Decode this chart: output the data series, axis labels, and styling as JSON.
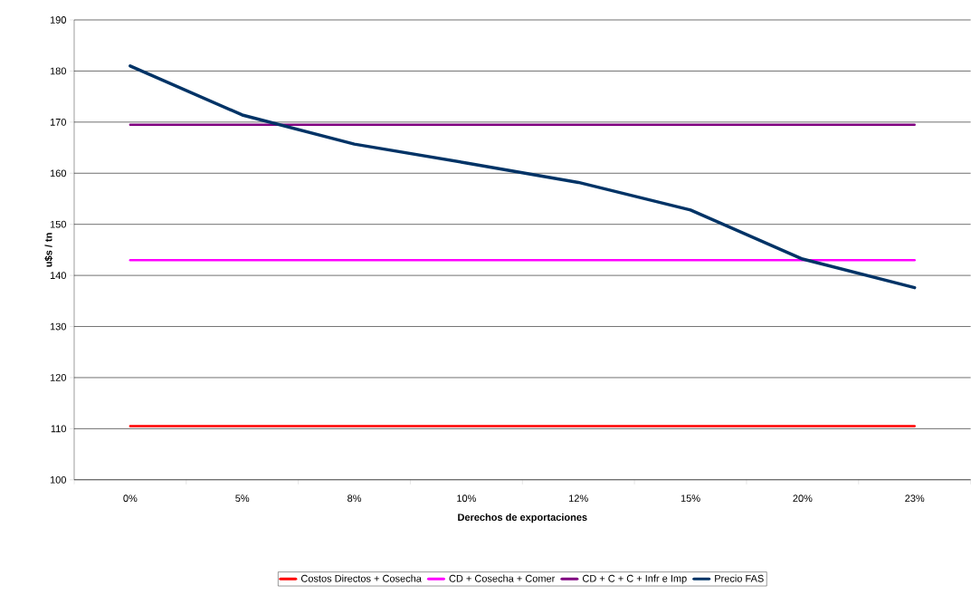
{
  "chart_data": {
    "type": "line",
    "xlabel": "Derechos de exportaciones",
    "ylabel": "u$s / tn",
    "categories": [
      "0%",
      "5%",
      "8%",
      "10%",
      "12%",
      "15%",
      "20%",
      "23%"
    ],
    "series": [
      {
        "name": "Costos Directos + Cosecha",
        "color": "#ff0000",
        "values": [
          110.5,
          110.5,
          110.5,
          110.5,
          110.5,
          110.5,
          110.5,
          110.5
        ]
      },
      {
        "name": "CD + Cosecha + Comer",
        "color": "#ff00ff",
        "values": [
          143,
          143,
          143,
          143,
          143,
          143,
          143,
          143
        ]
      },
      {
        "name": "CD + C + C + Infr e Imp",
        "color": "#800080",
        "values": [
          169.5,
          169.5,
          169.5,
          169.5,
          169.5,
          169.5,
          169.5,
          169.5
        ]
      },
      {
        "name": "Precio FAS",
        "color": "#003366",
        "values": [
          181,
          171.4,
          165.7,
          162,
          158.2,
          152.8,
          143.2,
          137.6
        ]
      }
    ],
    "ylim": [
      100,
      190
    ],
    "yticks": [
      100,
      110,
      120,
      130,
      140,
      150,
      160,
      170,
      180,
      190
    ],
    "grid": "y",
    "legend": "bottom",
    "marker": "none",
    "line_style": "solid"
  }
}
